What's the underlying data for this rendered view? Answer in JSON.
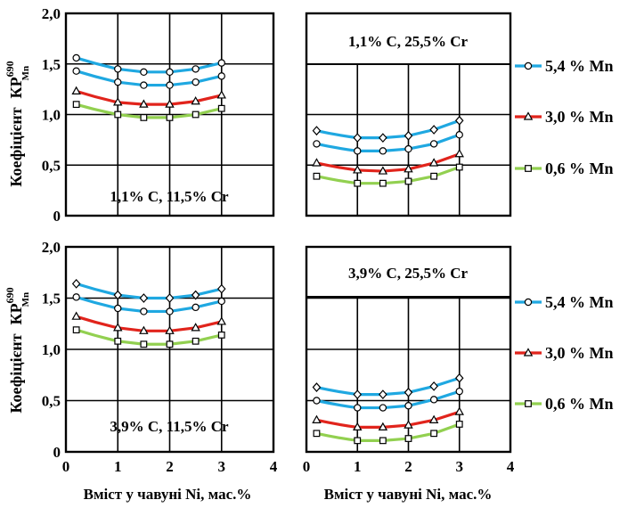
{
  "figure": {
    "ylabel": "Коефіцієнт",
    "ylabel_sym": "КР",
    "ylabel_sup": "690",
    "ylabel_sub": "Mn",
    "xlabel": "Вміст у чавуні Ni, мас.%",
    "colors": {
      "5.4": "#1fa8e1",
      "3.0": "#e1241c",
      "0.6": "#92d050"
    },
    "legend_top": [
      "5,4 % Mn",
      "3,0 % Mn",
      "0,6 % Mn"
    ],
    "legend_bottom": [
      "5,4 % Mn",
      "3,0 % Mn",
      "0,6 % Mn"
    ]
  },
  "chart_data": [
    {
      "type": "line",
      "title": "1,1% C, 11,5% Cr",
      "xlim": [
        0,
        4
      ],
      "ylim": [
        0,
        2
      ],
      "xticks": [
        "0",
        "1",
        "2",
        "3",
        "4"
      ],
      "yticks": [
        "0",
        "0,5",
        "1,0",
        "1,5",
        "2,0"
      ],
      "show_xticks": false,
      "show_yticks": true,
      "legend": "none",
      "x": [
        0.2,
        1,
        1.5,
        2,
        2.5,
        3
      ],
      "series": [
        {
          "name": "5,4 % Mn",
          "marker": "circle",
          "values": [
            1.56,
            1.45,
            1.42,
            1.42,
            1.45,
            1.51
          ]
        },
        {
          "name": "5,4 % Mn",
          "marker": "circle",
          "values": [
            1.43,
            1.32,
            1.29,
            1.29,
            1.32,
            1.38
          ]
        },
        {
          "name": "3,0 % Mn",
          "marker": "triangle",
          "values": [
            1.23,
            1.12,
            1.1,
            1.1,
            1.13,
            1.19
          ]
        },
        {
          "name": "0,6 % Mn",
          "marker": "square",
          "values": [
            1.1,
            1.0,
            0.97,
            0.97,
            1.0,
            1.06
          ]
        }
      ]
    },
    {
      "type": "line",
      "title": "1,1% C,  25,5% Cr",
      "xlim": [
        0,
        4
      ],
      "ylim": [
        0,
        2
      ],
      "xticks": [
        "0",
        "1",
        "2",
        "3",
        "4"
      ],
      "yticks": [
        "0",
        "0,5",
        "1,0",
        "1,5",
        "2,0"
      ],
      "show_xticks": false,
      "show_yticks": false,
      "legend": "right",
      "x": [
        0.2,
        1,
        1.5,
        2,
        2.5,
        3
      ],
      "series": [
        {
          "name": "5,4 % Mn",
          "marker": "diamond",
          "values": [
            0.84,
            0.77,
            0.77,
            0.79,
            0.85,
            0.94
          ]
        },
        {
          "name": "5,4 % Mn",
          "marker": "circle",
          "values": [
            0.71,
            0.64,
            0.64,
            0.66,
            0.71,
            0.8
          ]
        },
        {
          "name": "3,0 % Mn",
          "marker": "triangle",
          "values": [
            0.52,
            0.45,
            0.44,
            0.46,
            0.52,
            0.61
          ]
        },
        {
          "name": "0,6 % Mn",
          "marker": "square",
          "values": [
            0.39,
            0.32,
            0.32,
            0.34,
            0.39,
            0.48
          ]
        }
      ]
    },
    {
      "type": "line",
      "title": "3,9% C, 11,5% Cr",
      "xlim": [
        0,
        4
      ],
      "ylim": [
        0,
        2
      ],
      "xticks": [
        "0",
        "1",
        "2",
        "3",
        "4"
      ],
      "yticks": [
        "0",
        "0,5",
        "1,0",
        "1,5",
        "2,0"
      ],
      "show_xticks": true,
      "show_yticks": true,
      "legend": "none",
      "x": [
        0.2,
        1,
        1.5,
        2,
        2.5,
        3
      ],
      "series": [
        {
          "name": "5,4 % Mn",
          "marker": "diamond",
          "values": [
            1.64,
            1.53,
            1.5,
            1.5,
            1.53,
            1.59
          ]
        },
        {
          "name": "5,4 % Mn",
          "marker": "circle",
          "values": [
            1.51,
            1.4,
            1.37,
            1.37,
            1.41,
            1.47
          ]
        },
        {
          "name": "3,0 % Mn",
          "marker": "triangle",
          "values": [
            1.32,
            1.21,
            1.18,
            1.18,
            1.21,
            1.27
          ]
        },
        {
          "name": "0,6 % Mn",
          "marker": "square",
          "values": [
            1.19,
            1.08,
            1.05,
            1.05,
            1.08,
            1.14
          ]
        }
      ]
    },
    {
      "type": "line",
      "title": "3,9% C,  25,5% Cr",
      "xlim": [
        0,
        4
      ],
      "ylim": [
        0,
        2
      ],
      "xticks": [
        "0",
        "1",
        "2",
        "3",
        "4"
      ],
      "yticks": [
        "0",
        "0,5",
        "1,0",
        "1,5",
        "2,0"
      ],
      "show_xticks": true,
      "show_yticks": false,
      "legend": "right",
      "x": [
        0.2,
        1,
        1.5,
        2,
        2.5,
        3
      ],
      "series": [
        {
          "name": "5,4 % Mn",
          "marker": "diamond",
          "values": [
            0.63,
            0.56,
            0.56,
            0.58,
            0.64,
            0.72
          ]
        },
        {
          "name": "5,4 % Mn",
          "marker": "circle",
          "values": [
            0.5,
            0.43,
            0.43,
            0.45,
            0.51,
            0.59
          ]
        },
        {
          "name": "3,0 % Mn",
          "marker": "triangle",
          "values": [
            0.31,
            0.24,
            0.24,
            0.26,
            0.31,
            0.39
          ]
        },
        {
          "name": "0,6 % Mn",
          "marker": "square",
          "values": [
            0.18,
            0.11,
            0.11,
            0.13,
            0.18,
            0.27
          ]
        }
      ]
    }
  ]
}
